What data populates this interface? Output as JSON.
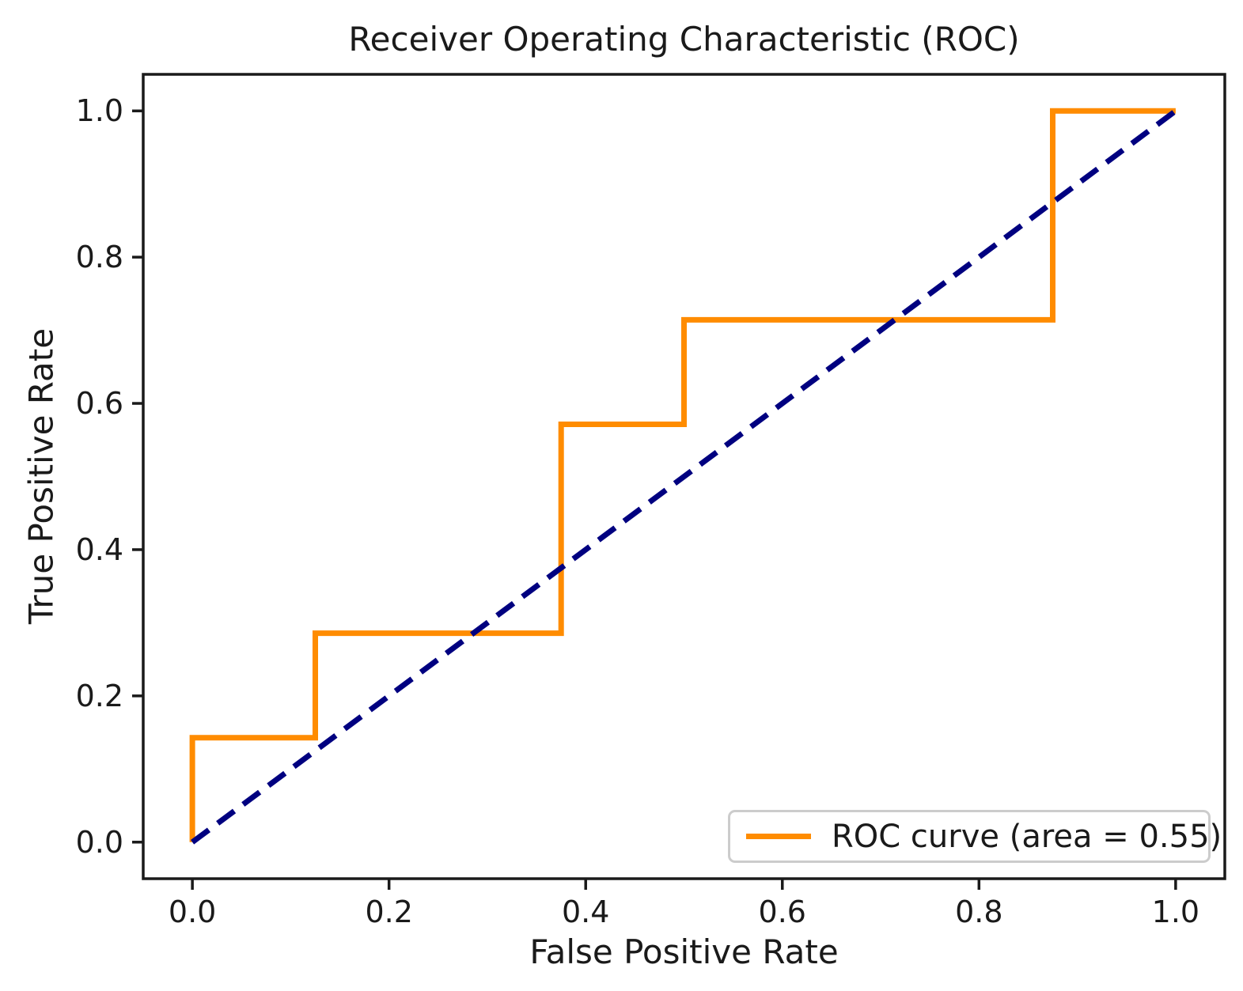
{
  "figure": {
    "background": "#ffffff",
    "text_color": "#1a1a1a",
    "spine_color": "#1a1a1a"
  },
  "chart_data": {
    "type": "line",
    "title": "Receiver Operating Characteristic (ROC)",
    "xlabel": "False Positive Rate",
    "ylabel": "True Positive Rate",
    "xlim": [
      -0.05,
      1.05
    ],
    "ylim": [
      -0.05,
      1.05
    ],
    "xticks": [
      0.0,
      0.2,
      0.4,
      0.6,
      0.8,
      1.0
    ],
    "yticks": [
      0.0,
      0.2,
      0.4,
      0.6,
      0.8,
      1.0
    ],
    "grid": false,
    "auc": 0.55,
    "series": [
      {
        "name": "roc-curve",
        "label": "ROC curve (area = 0.55)",
        "color": "#FF8C00",
        "line_style": "solid",
        "line_width": 7,
        "x": [
          0.0,
          0.0,
          0.125,
          0.125,
          0.375,
          0.375,
          0.5,
          0.5,
          0.875,
          0.875,
          1.0
        ],
        "y": [
          0.0,
          0.1429,
          0.1429,
          0.2857,
          0.2857,
          0.5714,
          0.5714,
          0.7143,
          0.7143,
          1.0,
          1.0
        ]
      },
      {
        "name": "chance-diagonal",
        "label": "",
        "color": "#000080",
        "line_style": "dashed",
        "line_width": 7,
        "x": [
          0.0,
          1.0
        ],
        "y": [
          0.0,
          1.0
        ]
      }
    ],
    "legend": {
      "position": "lower right",
      "entries": [
        {
          "label": "ROC curve (area = 0.55)",
          "color": "#FF8C00",
          "style": "solid"
        }
      ]
    }
  }
}
